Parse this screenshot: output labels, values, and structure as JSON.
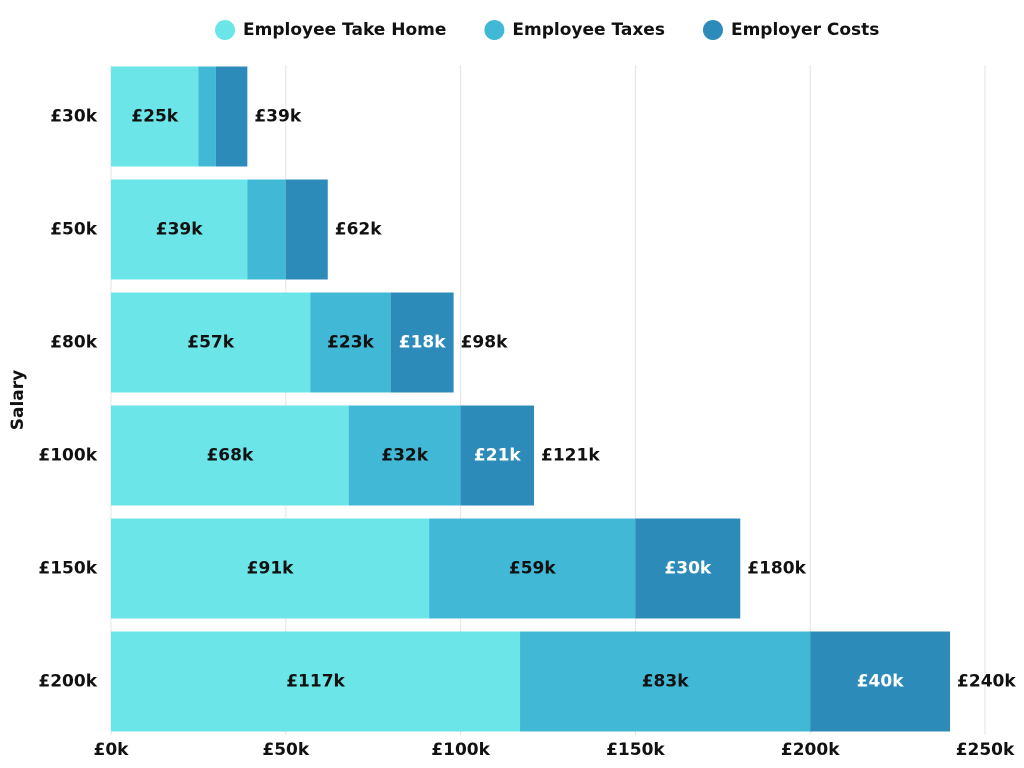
{
  "chart_data": {
    "type": "stacked-barh",
    "y_label": "Salary",
    "categories": [
      "£30k",
      "£50k",
      "£80k",
      "£100k",
      "£150k",
      "£200k"
    ],
    "series": [
      {
        "name": "Employee Take Home",
        "color": "#6ce5e8",
        "values": [
          25000,
          39000,
          57000,
          68000,
          91000,
          117000
        ],
        "value_labels": [
          "£25k",
          "£39k",
          "£57k",
          "£68k",
          "£91k",
          "£117k"
        ]
      },
      {
        "name": "Employee Taxes",
        "color": "#41b8d5",
        "values": [
          5000,
          11000,
          23000,
          32000,
          59000,
          83000
        ],
        "value_labels": [
          null,
          null,
          "£23k",
          "£32k",
          "£59k",
          "£83k"
        ]
      },
      {
        "name": "Employer Costs",
        "color": "#2d8bba",
        "values": [
          9000,
          12000,
          18000,
          21000,
          30000,
          40000
        ],
        "value_labels": [
          null,
          null,
          "£18k",
          "£21k",
          "£30k",
          "£40k"
        ]
      }
    ],
    "totals": [
      39000,
      62000,
      98000,
      121000,
      180000,
      240000
    ],
    "total_labels": [
      "£39k",
      "£62k",
      "£98k",
      "£121k",
      "£180k",
      "£240k"
    ],
    "xlim": [
      0,
      250000
    ],
    "xticks": [
      {
        "value": 0,
        "label": "£0k"
      },
      {
        "value": 50000,
        "label": "£50k"
      },
      {
        "value": 100000,
        "label": "£100k"
      },
      {
        "value": 150000,
        "label": "£150k"
      },
      {
        "value": 200000,
        "label": "£200k"
      },
      {
        "value": 250000,
        "label": "£250k"
      }
    ],
    "grid": true,
    "legend": "top"
  }
}
